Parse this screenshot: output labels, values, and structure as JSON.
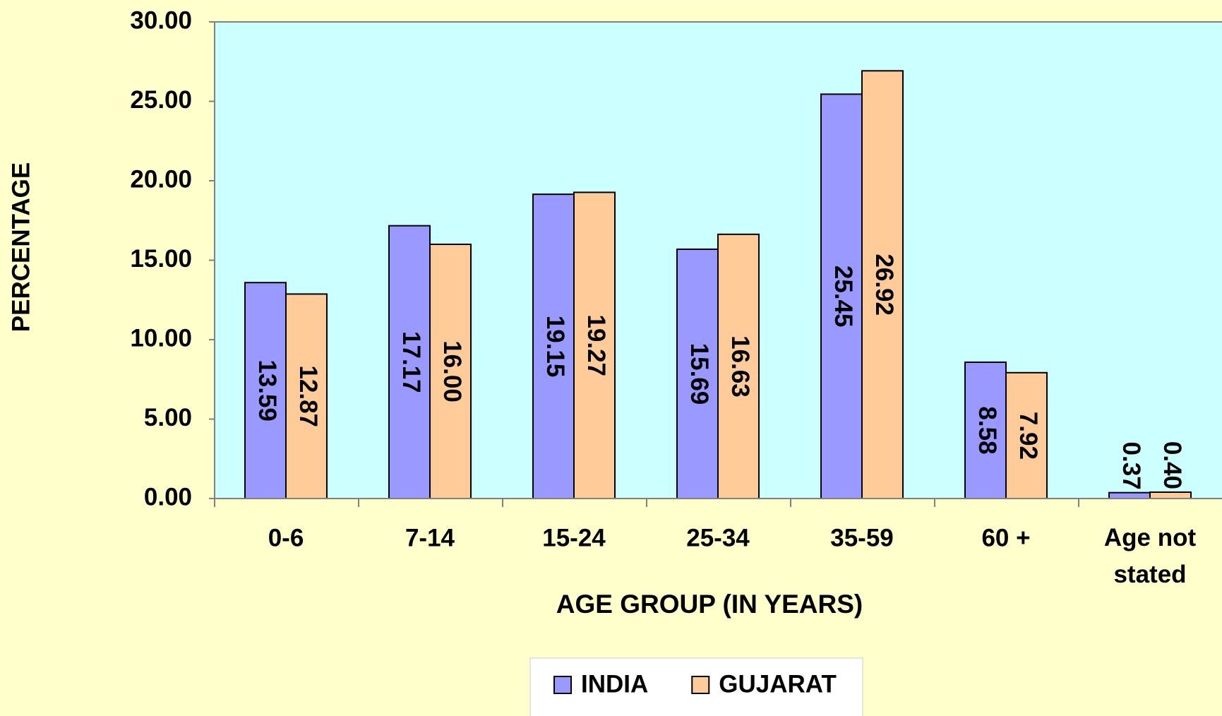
{
  "chart_data": {
    "type": "bar",
    "y_label": "PERCENTAGE",
    "x_label": "AGE GROUP (IN YEARS)",
    "categories": [
      "0-6",
      "7-14",
      "15-24",
      "25-34",
      "35-59",
      "60 +",
      "Age not stated"
    ],
    "series": [
      {
        "name": "INDIA",
        "color": "#9999ff",
        "values": [
          13.59,
          17.17,
          19.15,
          15.69,
          25.45,
          8.58,
          0.37
        ],
        "value_labels": [
          "13.59",
          "17.17",
          "19.15",
          "15.69",
          "25.45",
          "8.58",
          "0.37"
        ]
      },
      {
        "name": "GUJARAT",
        "color": "#ffcc99",
        "values": [
          12.87,
          16,
          19.27,
          16.63,
          26.92,
          7.92,
          0.4
        ],
        "value_labels": [
          "12.87",
          "16.00",
          "19.27",
          "16.63",
          "26.92",
          "7.92",
          "0.40"
        ]
      }
    ],
    "ylim": [
      0,
      30
    ],
    "yticks": [
      {
        "value": 0,
        "label": "0.00"
      },
      {
        "value": 5,
        "label": "5.00"
      },
      {
        "value": 10,
        "label": "10.00"
      },
      {
        "value": 15,
        "label": "15.00"
      },
      {
        "value": 20,
        "label": "20.00"
      },
      {
        "value": 25,
        "label": "25.00"
      },
      {
        "value": 30,
        "label": "30.00"
      }
    ],
    "plot_background": "#ccffff",
    "legend": "bottom"
  }
}
